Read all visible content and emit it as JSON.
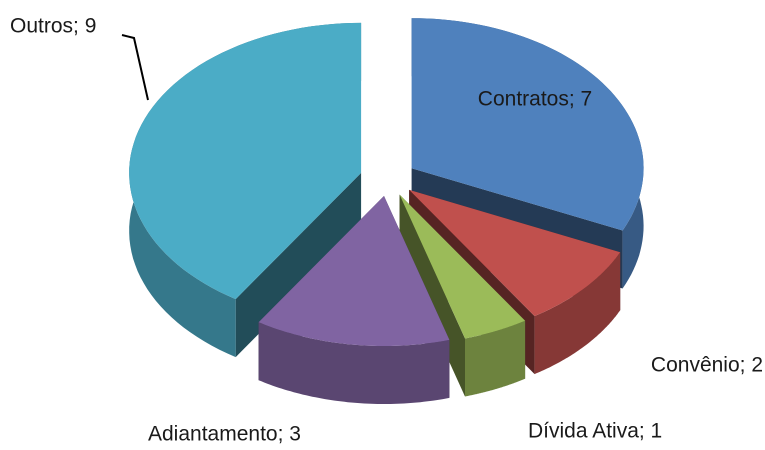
{
  "chart_data": {
    "type": "pie3d",
    "values": [
      7,
      2,
      1,
      3,
      9
    ],
    "value_labels": [
      "Contratos; 7",
      "Convênio; 2",
      "Dívida Ativa; 1",
      "Adiantamento; 3",
      "Outros; 9"
    ],
    "colors": [
      "#4f81bd",
      "#c0504d",
      "#9bbb59",
      "#8064a2",
      "#4bacc6"
    ]
  }
}
